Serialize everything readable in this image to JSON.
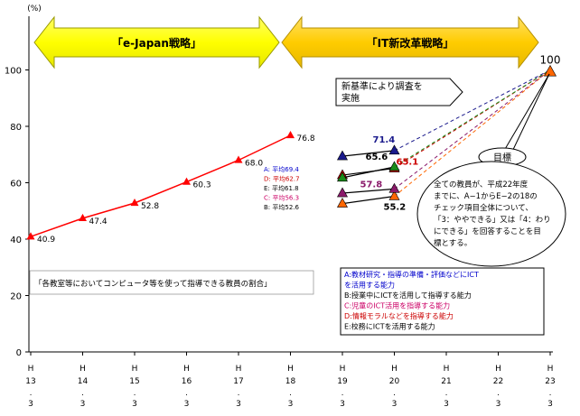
{
  "chart_data": {
    "type": "line",
    "y_unit": "(%)",
    "ylim": [
      0,
      120
    ],
    "y_ticks": [
      0,
      20,
      40,
      60,
      80,
      100
    ],
    "x_ticks": [
      {
        "top": "H",
        "mid": "13",
        "bottom": "3"
      },
      {
        "top": "H",
        "mid": "14",
        "bottom": "3"
      },
      {
        "top": "H",
        "mid": "15",
        "bottom": "3"
      },
      {
        "top": "H",
        "mid": "16",
        "bottom": "3"
      },
      {
        "top": "H",
        "mid": "17",
        "bottom": "3"
      },
      {
        "top": "H",
        "mid": "18",
        "bottom": "3"
      },
      {
        "top": "H",
        "mid": "19",
        "bottom": "3"
      },
      {
        "top": "H",
        "mid": "20",
        "bottom": "3"
      },
      {
        "top": "H",
        "mid": "21",
        "bottom": "3"
      },
      {
        "top": "H",
        "mid": "22",
        "bottom": "3"
      },
      {
        "top": "H",
        "mid": "23",
        "bottom": "3"
      }
    ],
    "historical_series": {
      "name": "各教室等においてコンピュータ等を使って指導できる教員の割合",
      "x": [
        13,
        14,
        15,
        16,
        17,
        18
      ],
      "values": [
        40.9,
        47.4,
        52.8,
        60.3,
        68.0,
        76.8
      ],
      "labels": [
        "40.9",
        "47.4",
        "52.8",
        "60.3",
        "68.0",
        "76.8"
      ],
      "color": "#ff0000"
    },
    "new_series": [
      {
        "key": "A",
        "label": "A: 平均69.4",
        "x": [
          19,
          20
        ],
        "values": [
          69.4,
          71.4
        ],
        "value_label": "71.4",
        "color": "#1a1a8c",
        "marker": "triangle",
        "legend_color": "#0000cc"
      },
      {
        "key": "B",
        "label": "B: 平均52.6",
        "x": [
          19,
          20
        ],
        "values": [
          52.6,
          55.2
        ],
        "value_label": "55.2",
        "color": "#ff6600",
        "marker": "triangle",
        "legend_color": "#000000"
      },
      {
        "key": "C",
        "label": "C: 平均56.3",
        "x": [
          19,
          20
        ],
        "values": [
          56.3,
          57.8
        ],
        "value_label": "57.8",
        "color": "#8b1a6b",
        "marker": "triangle",
        "legend_color": "#cc0066"
      },
      {
        "key": "D",
        "label": "D: 平均62.7",
        "x": [
          19,
          20
        ],
        "values": [
          62.7,
          65.1
        ],
        "value_label": "65.1",
        "color": "#cc0000",
        "marker": "triangle",
        "legend_color": "#cc0000"
      },
      {
        "key": "E",
        "label": "E: 平均61.8",
        "x": [
          19,
          20
        ],
        "values": [
          61.8,
          65.6
        ],
        "value_label": "65.6",
        "color": "#1a8c1a",
        "marker": "triangle",
        "legend_color": "#000000"
      }
    ],
    "target": {
      "x": 23,
      "value": 100,
      "label": "100",
      "marker_color": "#ff6600"
    },
    "phases": [
      {
        "label": "「e-Japan戦略」",
        "x_from": 13,
        "x_to": 18,
        "color": "#ffff00"
      },
      {
        "label": "「IT新改革戦略」",
        "x_from": 18,
        "x_to": 23,
        "color": "#ffcc00"
      }
    ],
    "legend_order": [
      "A",
      "D",
      "E",
      "C",
      "B"
    ]
  },
  "annotations": {
    "survey_note_lines": [
      "新基準により調査を",
      "実施"
    ],
    "goal_title": "目標",
    "goal_text_lines": [
      "全ての教員が、平成22年度",
      "までに、A−1からE−2の18の",
      "チェック項目全体について、",
      "「3：ややできる」又は「4：わり",
      "にできる」を回答することを目",
      "標とする。"
    ],
    "series_description": "「各教室等においてコンピュータ等を使って指導できる教員の割合」",
    "ability_legend": [
      {
        "text": "A:教材研究・指導の準備・評価などにICT",
        "color": "#0000cc"
      },
      {
        "text": "を活用する能力",
        "color": "#0000cc"
      },
      {
        "text": "B:授業中にICTを活用して指導する能力",
        "color": "#000000"
      },
      {
        "text": "C:児童のICT活用を指導する能力",
        "color": "#cc0066"
      },
      {
        "text": "D:情報モラルなどを指導する能力",
        "color": "#cc0000"
      },
      {
        "text": "E:校務にICTを活用する能力",
        "color": "#000000"
      }
    ]
  }
}
